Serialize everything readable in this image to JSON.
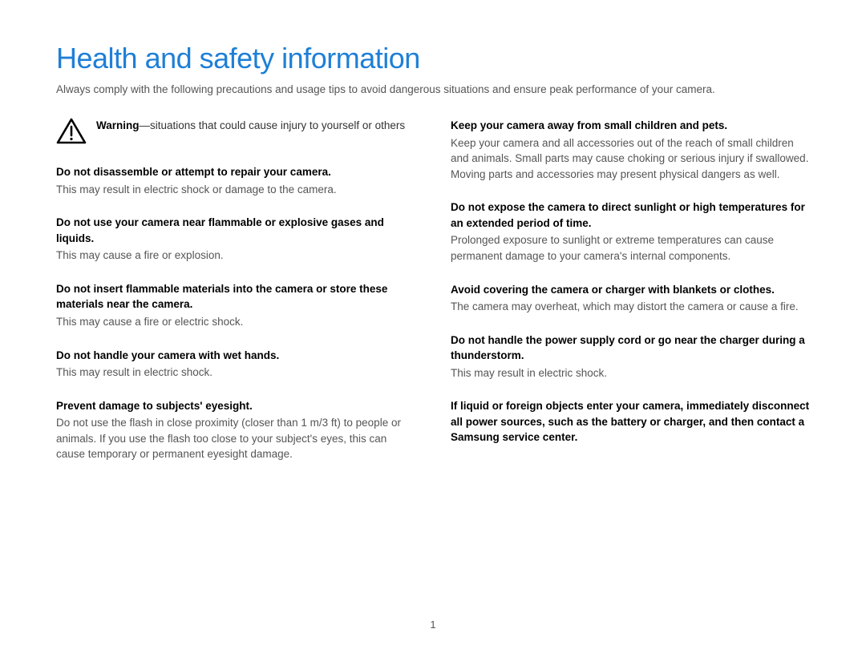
{
  "title": "Health and safety information",
  "title_color": "#1e7fd6",
  "intro": "Always comply with the following precautions and usage tips to avoid dangerous situations and ensure peak performance of your camera.",
  "warning_label": "Warning",
  "warning_desc": "—situations that could cause injury to yourself or others",
  "left_sections": [
    {
      "heading": "Do not disassemble or attempt to repair your camera.",
      "body": "This may result in electric shock or damage to the camera."
    },
    {
      "heading": "Do not use your camera near flammable or explosive gases and liquids.",
      "body": "This may cause a fire or explosion."
    },
    {
      "heading": "Do not insert flammable materials into the camera or store these materials near the camera.",
      "body": "This may cause a fire or electric shock."
    },
    {
      "heading": "Do not handle your camera with wet hands.",
      "body": "This may result in electric shock."
    },
    {
      "heading": "Prevent damage to subjects' eyesight.",
      "body": "Do not use the flash in close proximity (closer than 1 m/3 ft) to people or animals. If you use the flash too close to your subject's eyes, this can cause temporary or permanent eyesight damage."
    }
  ],
  "right_sections": [
    {
      "heading": "Keep your camera away from small children and pets.",
      "body": "Keep your camera and all accessories out of the reach of small children and animals. Small parts may cause choking or serious injury if swallowed. Moving parts and accessories may present physical dangers as well."
    },
    {
      "heading": "Do not expose the camera to direct sunlight or high temperatures for an extended period of time.",
      "body": "Prolonged exposure to sunlight or extreme temperatures can cause permanent damage to your camera's internal components."
    },
    {
      "heading": "Avoid covering the camera or charger with blankets or clothes.",
      "body": "The camera may overheat, which may distort the camera or cause a fire."
    },
    {
      "heading": "Do not handle the power supply cord or go near the charger during a thunderstorm.",
      "body": "This may result in electric shock."
    },
    {
      "heading": "If liquid or foreign objects enter your camera, immediately disconnect all power sources, such as the battery or charger, and then contact a Samsung service center.",
      "body": ""
    }
  ],
  "page_number": "1"
}
